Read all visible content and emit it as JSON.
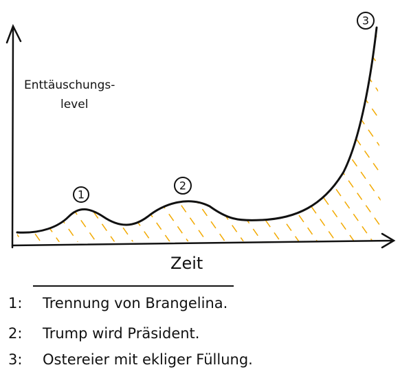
{
  "y_axis_label": [
    "Enttäuschungs-",
    "level"
  ],
  "x_axis_label": "Zeit",
  "markers": [
    "1",
    "2",
    "3"
  ],
  "legend": [
    {
      "key": "1:",
      "text": "Trennung von Brangelina."
    },
    {
      "key": "2:",
      "text": "Trump wird Präsident."
    },
    {
      "key": "3:",
      "text": "Ostereier mit ekliger Füllung."
    }
  ]
}
